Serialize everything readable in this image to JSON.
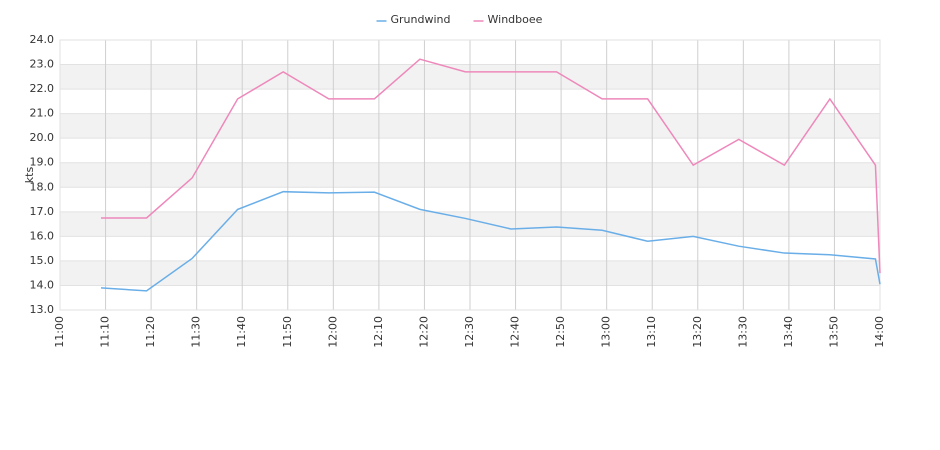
{
  "chart_data": {
    "type": "line",
    "y_label": "kts",
    "x": [
      "11:09",
      "11:19",
      "11:29",
      "11:39",
      "11:49",
      "11:59",
      "12:09",
      "12:19",
      "12:29",
      "12:39",
      "12:49",
      "12:59",
      "13:09",
      "13:19",
      "13:29",
      "13:39",
      "13:49",
      "13:59",
      "14:00"
    ],
    "series": [
      {
        "name": "Grundwind",
        "color": "#6aaee8",
        "values": [
          13.9,
          13.78,
          15.1,
          17.1,
          17.82,
          17.77,
          17.8,
          17.1,
          16.73,
          16.3,
          16.38,
          16.25,
          15.8,
          16.0,
          15.6,
          15.32,
          15.25,
          15.08,
          14.05
        ]
      },
      {
        "name": "Windboee",
        "color": "#ee88bb",
        "values": [
          16.75,
          16.75,
          18.38,
          21.6,
          22.7,
          21.6,
          21.6,
          23.22,
          22.7,
          22.7,
          22.7,
          21.6,
          21.6,
          18.9,
          19.95,
          18.9,
          21.6,
          18.9,
          14.5
        ]
      }
    ],
    "xlim": [
      "11:00",
      "14:00"
    ],
    "xticks": [
      "11:00",
      "11:10",
      "11:20",
      "11:30",
      "11:40",
      "11:50",
      "12:00",
      "12:10",
      "12:20",
      "12:30",
      "12:40",
      "12:50",
      "13:00",
      "13:10",
      "13:20",
      "13:30",
      "13:40",
      "13:50",
      "14:00"
    ],
    "ylim": [
      13,
      24
    ],
    "yticks": [
      {
        "value": 13,
        "label": "13.0"
      },
      {
        "value": 14,
        "label": "14.0"
      },
      {
        "value": 15,
        "label": "15.0"
      },
      {
        "value": 16,
        "label": "16.0"
      },
      {
        "value": 17,
        "label": "17.0"
      },
      {
        "value": 18,
        "label": "18.0"
      },
      {
        "value": 19,
        "label": "19.0"
      },
      {
        "value": 20,
        "label": "20.0"
      },
      {
        "value": 21,
        "label": "21.0"
      },
      {
        "value": 22,
        "label": "22.0"
      },
      {
        "value": 23,
        "label": "23.0"
      },
      {
        "value": 24,
        "label": "24.0"
      }
    ],
    "grid": true,
    "alternate_bands": true,
    "legend": "top"
  }
}
